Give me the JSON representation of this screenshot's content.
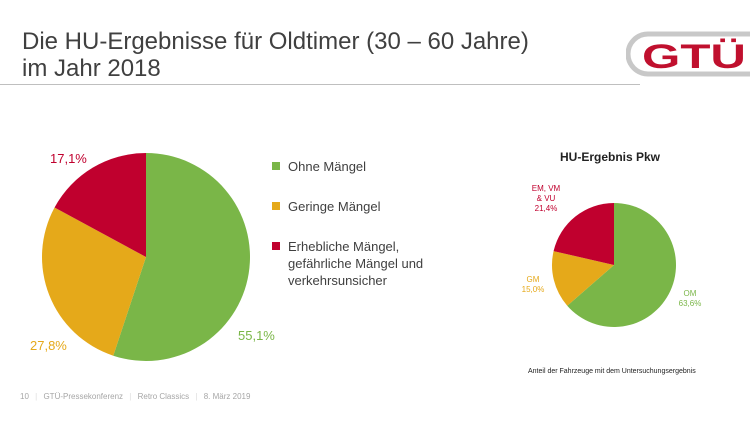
{
  "title": {
    "line1": "Die HU-Ergebnisse für Oldtimer (30 – 60 Jahre)",
    "line2": "im Jahr 2018"
  },
  "logo": "GTÜ",
  "chart_data": [
    {
      "type": "pie",
      "title": "",
      "categories": [
        "Ohne Mängel",
        "Geringe Mängel",
        "Erhebliche Mängel, gefährliche Mängel und verkehrsunsicher"
      ],
      "values": [
        55.1,
        27.8,
        17.1
      ],
      "value_labels": [
        "55,1%",
        "27,8%",
        "17,1%"
      ],
      "colors": [
        "#7ab648",
        "#e5a91a",
        "#c0002e"
      ],
      "legend": {
        "placement": "right",
        "items": [
          "Ohne Mängel",
          "Geringe Mängel",
          "Erhebliche Mängel,",
          "gefährliche Mängel und",
          "verkehrsunsicher"
        ]
      }
    },
    {
      "type": "pie",
      "title": "HU-Ergebnis Pkw",
      "categories": [
        "OM",
        "GM",
        "EM, VM & VU"
      ],
      "values": [
        63.6,
        15.0,
        21.4
      ],
      "labels": [
        [
          "OM",
          "63,6%"
        ],
        [
          "GM",
          "15,0%"
        ],
        [
          "EM, VM",
          "& VU",
          "21,4%"
        ]
      ],
      "colors": [
        "#7ab648",
        "#e5a91a",
        "#c0002e"
      ],
      "note": "Anteil der Fahrzeuge mit dem Untersuchungsergebnis"
    }
  ],
  "footer": {
    "page": "10",
    "event": "GTÜ-Pressekonferenz",
    "show": "Retro Classics",
    "date": "8. März 2019",
    "sep": "|"
  }
}
